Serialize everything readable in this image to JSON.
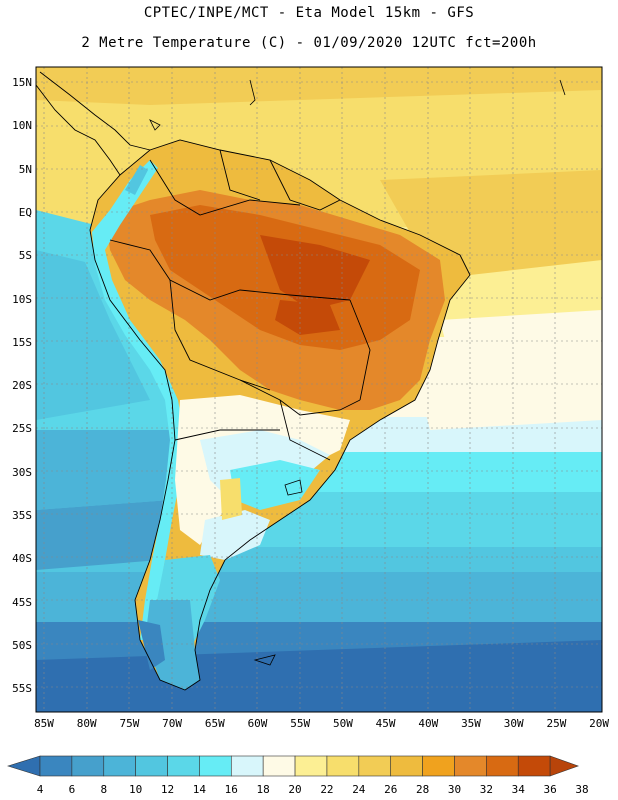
{
  "header": {
    "title_line1": "CPTEC/INPE/MCT -  Eta Model 15km - GFS",
    "title_line2": "2 Metre Temperature (C) - 01/09/2020 12UTC fct=200h"
  },
  "map": {
    "lat_labels": [
      "15N",
      "10N",
      "5N",
      "EQ",
      "5S",
      "10S",
      "15S",
      "20S",
      "25S",
      "30S",
      "35S",
      "40S",
      "45S",
      "50S",
      "55S"
    ],
    "lon_labels": [
      "85W",
      "80W",
      "75W",
      "70W",
      "65W",
      "60W",
      "55W",
      "50W",
      "45W",
      "40W",
      "35W",
      "30W",
      "25W",
      "20W"
    ],
    "region": "South America",
    "variable": "2 Metre Temperature (C)"
  },
  "colorbar": {
    "labels": [
      "4",
      "6",
      "8",
      "10",
      "12",
      "14",
      "16",
      "18",
      "20",
      "22",
      "24",
      "26",
      "28",
      "30",
      "32",
      "34",
      "36",
      "38"
    ],
    "colors": [
      "#2f6fb0",
      "#3a86bf",
      "#46a0cc",
      "#4cb4d8",
      "#52c6e0",
      "#5bd7e8",
      "#66ecf5",
      "#d8f6fb",
      "#fefae6",
      "#fcef94",
      "#f7de6c",
      "#f2cc55",
      "#eebb3e",
      "#f0a21e",
      "#e4882a",
      "#d86a12",
      "#c44a08",
      "#b8440a"
    ]
  }
}
